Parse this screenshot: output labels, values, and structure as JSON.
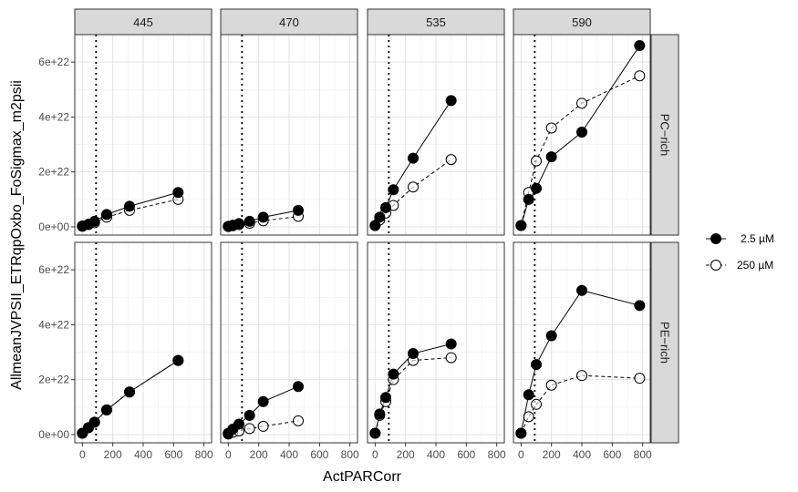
{
  "chart_data": {
    "type": "line",
    "xlabel": "ActPARCorr",
    "ylabel": "AllmeanJVPSII_ETRqpOxbo_FoSigmax_m2psii",
    "column_facets": [
      "445",
      "470",
      "535",
      "590"
    ],
    "row_facets": [
      "PC−rich",
      "PE−rich"
    ],
    "xlim": [
      -50,
      850
    ],
    "ylim": [
      -3e+21,
      7e+22
    ],
    "x_ticks": [
      0,
      200,
      400,
      600,
      800
    ],
    "x_tick_labels": [
      "0",
      "200",
      "400",
      "600",
      "800"
    ],
    "y_ticks": [
      0,
      2e+22,
      4e+22,
      6e+22
    ],
    "y_tick_labels": [
      "0e+00",
      "2e+22",
      "4e+22",
      "6e+22"
    ],
    "vline_x": 90,
    "grid": true,
    "legend_position": "right",
    "series_names": [
      "2.5 µM",
      "250 µM"
    ],
    "panels": [
      {
        "row": "PC−rich",
        "col": "445",
        "series": [
          {
            "name": "2.5 µM",
            "x": [
              0,
              40,
              80,
              160,
              310,
              630
            ],
            "y": [
              3e+20,
              1e+21,
              2e+21,
              4.5e+21,
              7.5e+21,
              1.25e+22
            ]
          },
          {
            "name": "250 µM",
            "x": [
              0,
              40,
              80,
              160,
              310,
              630
            ],
            "y": [
              2e+20,
              8e+20,
              1.5e+21,
              3.5e+21,
              6e+21,
              1e+22
            ]
          }
        ]
      },
      {
        "row": "PC−rich",
        "col": "470",
        "series": [
          {
            "name": "2.5 µM",
            "x": [
              0,
              30,
              70,
              140,
              230,
              460
            ],
            "y": [
              2e+20,
              6e+20,
              1.2e+21,
              2e+21,
              3.5e+21,
              6e+21
            ]
          },
          {
            "name": "250 µM",
            "x": [
              0,
              30,
              70,
              140,
              230,
              460
            ],
            "y": [
              1e+20,
              4e+20,
              8e+20,
              1.3e+21,
              2.2e+21,
              3.8e+21
            ]
          }
        ]
      },
      {
        "row": "PC−rich",
        "col": "535",
        "series": [
          {
            "name": "2.5 µM",
            "x": [
              0,
              30,
              70,
              120,
              250,
              500
            ],
            "y": [
              5e+20,
              3.5e+21,
              7e+21,
              1.35e+22,
              2.5e+22,
              4.6e+22
            ]
          },
          {
            "name": "250 µM",
            "x": [
              0,
              30,
              70,
              120,
              250,
              500
            ],
            "y": [
              5e+20,
              2.5e+21,
              5e+21,
              7.8e+21,
              1.45e+22,
              2.45e+22
            ]
          }
        ]
      },
      {
        "row": "PC−rich",
        "col": "590",
        "series": [
          {
            "name": "2.5 µM",
            "x": [
              0,
              50,
              100,
              200,
              400,
              780
            ],
            "y": [
              5e+20,
              1e+22,
              1.4e+22,
              2.55e+22,
              3.45e+22,
              6.6e+22
            ]
          },
          {
            "name": "250 µM",
            "x": [
              0,
              50,
              100,
              200,
              400,
              780
            ],
            "y": [
              5e+20,
              1.25e+22,
              2.4e+22,
              3.6e+22,
              4.5e+22,
              5.5e+22
            ]
          }
        ]
      },
      {
        "row": "PE−rich",
        "col": "445",
        "series": [
          {
            "name": "2.5 µM",
            "x": [
              0,
              40,
              80,
              160,
              310,
              630
            ],
            "y": [
              5e+20,
              2.5e+21,
              4.5e+21,
              9e+21,
              1.55e+22,
              2.7e+22
            ]
          },
          {
            "name": "250 µM",
            "x": [
              0,
              40,
              80,
              160,
              310,
              630
            ],
            "y": [
              5e+20,
              2.5e+21,
              4.5e+21,
              9e+21,
              1.55e+22,
              2.7e+22
            ]
          }
        ]
      },
      {
        "row": "PE−rich",
        "col": "470",
        "series": [
          {
            "name": "2.5 µM",
            "x": [
              0,
              30,
              70,
              140,
              230,
              460
            ],
            "y": [
              5e+20,
              2e+21,
              3.8e+21,
              7e+21,
              1.2e+22,
              1.75e+22
            ]
          },
          {
            "name": "250 µM",
            "x": [
              0,
              30,
              70,
              140,
              230,
              460
            ],
            "y": [
              2e+20,
              8e+20,
              1.3e+21,
              2.2e+21,
              3e+21,
              5e+21
            ]
          }
        ]
      },
      {
        "row": "PE−rich",
        "col": "535",
        "series": [
          {
            "name": "2.5 µM",
            "x": [
              0,
              30,
              70,
              120,
              250,
              500
            ],
            "y": [
              5e+20,
              7.5e+21,
              1.35e+22,
              2.2e+22,
              2.95e+22,
              3.3e+22
            ]
          },
          {
            "name": "250 µM",
            "x": [
              0,
              30,
              70,
              120,
              250,
              500
            ],
            "y": [
              5e+20,
              7e+21,
              1.2e+22,
              2e+22,
              2.7e+22,
              2.8e+22
            ]
          }
        ]
      },
      {
        "row": "PE−rich",
        "col": "590",
        "series": [
          {
            "name": "2.5 µM",
            "x": [
              0,
              50,
              100,
              200,
              400,
              780
            ],
            "y": [
              5e+20,
              1.45e+22,
              2.55e+22,
              3.6e+22,
              5.25e+22,
              4.7e+22
            ]
          },
          {
            "name": "250 µM",
            "x": [
              0,
              50,
              100,
              200,
              400,
              780
            ],
            "y": [
              5e+20,
              6.5e+21,
              1.1e+22,
              1.8e+22,
              2.15e+22,
              2.05e+22
            ]
          }
        ]
      }
    ]
  }
}
